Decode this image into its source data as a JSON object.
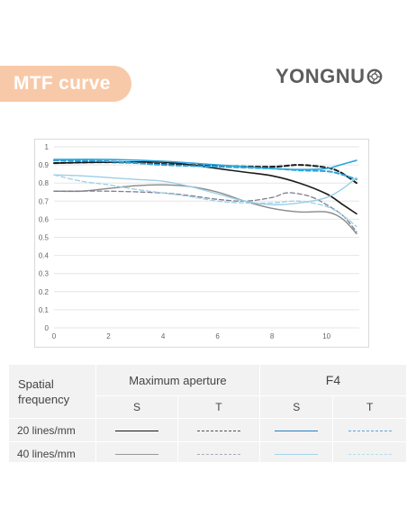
{
  "header": {
    "title": "MTF curve",
    "brand": "YONGNU",
    "brand_color": "#5d5d5d",
    "pill_color": "#f8c9a8"
  },
  "chart_data": {
    "type": "line",
    "title": "",
    "xlabel": "",
    "ylabel": "",
    "xlim": [
      0,
      11.2
    ],
    "ylim": [
      0,
      1
    ],
    "xticks": [
      "0",
      "2",
      "4",
      "6",
      "8",
      "10"
    ],
    "yticks": [
      "0",
      "0.1",
      "0.2",
      "0.3",
      "0.4",
      "0.5",
      "0.6",
      "0.7",
      "0.8",
      "0.9",
      "1"
    ],
    "grid": true,
    "series": [
      {
        "color": "#1a1a1a",
        "style": "solid",
        "width": 1.6,
        "x": [
          0,
          2,
          4,
          5,
          6,
          7,
          8,
          9,
          10,
          10.6,
          11.1
        ],
        "y": [
          0.91,
          0.915,
          0.915,
          0.9,
          0.88,
          0.86,
          0.84,
          0.8,
          0.74,
          0.68,
          0.63
        ]
      },
      {
        "color": "#1a1a1a",
        "style": "dashed",
        "width": 2,
        "x": [
          0,
          2,
          4,
          6,
          8,
          9,
          10,
          10.5,
          11.1
        ],
        "y": [
          0.91,
          0.915,
          0.905,
          0.895,
          0.89,
          0.9,
          0.885,
          0.86,
          0.8
        ]
      },
      {
        "color": "#2aa5dc",
        "style": "solid",
        "width": 1.6,
        "x": [
          0,
          2,
          4,
          6,
          8,
          9,
          10,
          10.5,
          11.1
        ],
        "y": [
          0.93,
          0.93,
          0.92,
          0.9,
          0.88,
          0.875,
          0.88,
          0.9,
          0.925
        ]
      },
      {
        "color": "#2aa5dc",
        "style": "dashed",
        "width": 2,
        "x": [
          0,
          2,
          4,
          6,
          8,
          9,
          10,
          10.5,
          11.1
        ],
        "y": [
          0.925,
          0.92,
          0.9,
          0.89,
          0.88,
          0.87,
          0.865,
          0.85,
          0.82
        ]
      },
      {
        "color": "#888888",
        "style": "solid",
        "width": 1.4,
        "x": [
          0,
          1,
          2,
          3,
          4,
          5,
          6,
          7,
          8,
          9,
          10,
          10.6,
          11.1
        ],
        "y": [
          0.755,
          0.755,
          0.77,
          0.785,
          0.79,
          0.78,
          0.75,
          0.7,
          0.66,
          0.64,
          0.64,
          0.6,
          0.52
        ]
      },
      {
        "color": "#7d7d8f",
        "style": "dashed",
        "width": 1.3,
        "x": [
          0,
          2,
          4,
          5,
          6,
          7,
          8,
          8.5,
          9,
          9.5,
          10,
          10.6,
          11.1
        ],
        "y": [
          0.755,
          0.755,
          0.745,
          0.73,
          0.71,
          0.7,
          0.72,
          0.745,
          0.74,
          0.72,
          0.68,
          0.62,
          0.53
        ]
      },
      {
        "color": "#9ccfe5",
        "style": "solid",
        "width": 1.4,
        "x": [
          0,
          1,
          2,
          3,
          4,
          5,
          6,
          7,
          8,
          9,
          10,
          10.6,
          11.1
        ],
        "y": [
          0.845,
          0.84,
          0.83,
          0.82,
          0.81,
          0.78,
          0.74,
          0.7,
          0.68,
          0.69,
          0.72,
          0.77,
          0.83
        ]
      },
      {
        "color": "#9ccfe5",
        "style": "dashed",
        "width": 1.3,
        "x": [
          0,
          1,
          2,
          3,
          4,
          5,
          6,
          7,
          8,
          9,
          10,
          10.6,
          11.1
        ],
        "y": [
          0.845,
          0.81,
          0.79,
          0.765,
          0.745,
          0.725,
          0.7,
          0.69,
          0.69,
          0.7,
          0.67,
          0.62,
          0.56
        ]
      }
    ]
  },
  "legend": {
    "spatial_line1": "Spatial",
    "spatial_line2": "frequency",
    "group1": "Maximum aperture",
    "group2": "F4",
    "s1": "S",
    "t1": "T",
    "s2": "S",
    "t2": "T",
    "row1": "20 lines/mm",
    "row2": "40 lines/mm"
  }
}
